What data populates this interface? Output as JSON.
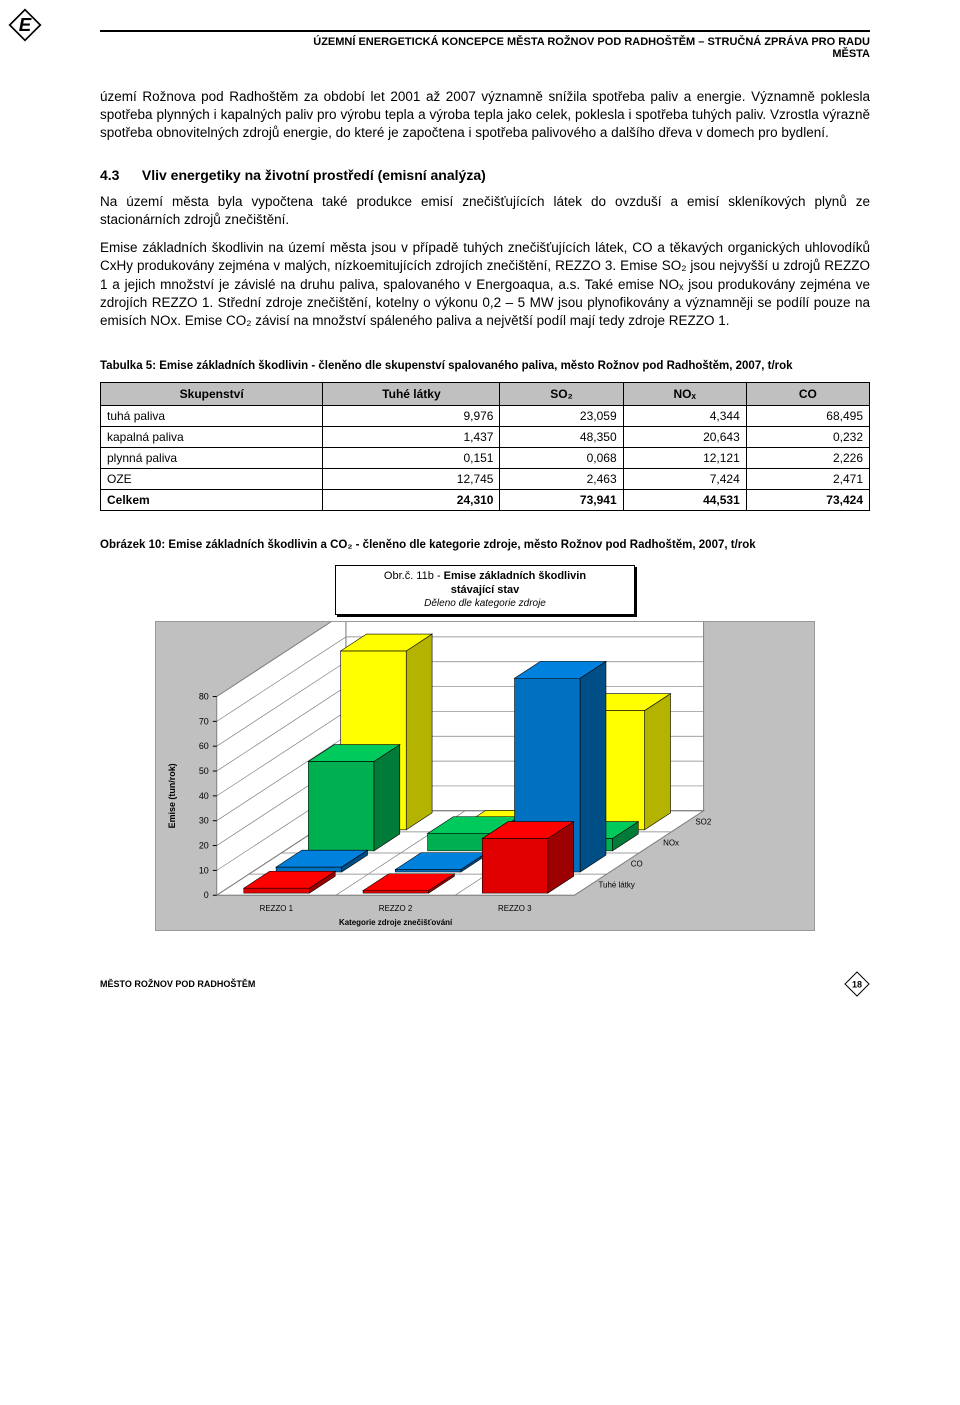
{
  "header": {
    "line1": "ÚZEMNÍ ENERGETICKÁ KONCEPCE MĚSTA ROŽNOV POD RADHOŠTĚM – STRUČNÁ ZPRÁVA PRO RADU",
    "line2": "MĚSTA"
  },
  "logo_text": "E",
  "paragraphs": {
    "p1": "území Rožnova pod Radhoštěm za období let 2001 až 2007 významně snížila spotřeba paliv a energie. Významně poklesla spotřeba plynných i kapalných paliv pro výrobu tepla a výroba tepla jako celek, poklesla i spotřeba tuhých paliv. Vzrostla výrazně spotřeba obnovitelných zdrojů energie, do které je započtena i spotřeba palivového a dalšího dřeva v domech pro bydlení.",
    "h_num": "4.3",
    "h_text": "Vliv energetiky na životní prostředí (emisní analýza)",
    "p2": "Na území města byla vypočtena také produkce emisí znečišťujících látek do ovzduší a emisí skleníkových plynů ze stacionárních zdrojů znečištění.",
    "p3": "Emise základních škodlivin na území města jsou v případě tuhých znečišťujících látek, CO a těkavých organických uhlovodíků CxHy  produkovány zejména v malých, nízkoemitujících zdrojích znečištění, REZZO 3.  Emise SO₂ jsou nejvyšší u zdrojů REZZO 1 a jejich množství je závislé na druhu paliva, spalovaného v Energoaqua, a.s. Také emise NOₓ jsou produkovány zejména ve zdrojích REZZO 1. Střední zdroje znečištění, kotelny o výkonu 0,2 – 5 MW jsou plynofikovány a významněji se podílí pouze na emisích NOx. Emise CO₂ závisí na množství spáleného paliva a největší podíl mají tedy zdroje REZZO 1."
  },
  "table": {
    "caption": "Tabulka 5:   Emise základních škodlivin - členěno dle skupenství spalovaného paliva, město Rožnov pod Radhoštěm, 2007, t/rok",
    "columns": [
      "Skupenství",
      "Tuhé látky",
      "SO₂",
      "NOₓ",
      "CO"
    ],
    "rows": [
      [
        "tuhá paliva",
        "9,976",
        "23,059",
        "4,344",
        "68,495"
      ],
      [
        "kapalná paliva",
        "1,437",
        "48,350",
        "20,643",
        "0,232"
      ],
      [
        "plynná paliva",
        "0,151",
        "0,068",
        "12,121",
        "2,226"
      ],
      [
        "OZE",
        "12,745",
        "2,463",
        "7,424",
        "2,471"
      ]
    ],
    "total": [
      "Celkem",
      "24,310",
      "73,941",
      "44,531",
      "73,424"
    ]
  },
  "figure": {
    "caption": "Obrázek 10:  Emise základních škodlivin a CO₂ - členěno dle kategorie zdroje, město Rožnov pod Radhoštěm, 2007, t/rok",
    "title_box": {
      "l1": "Obr.č. 11b - ",
      "l1b": "Emise základních škodlivin",
      "l2": "stávající stav",
      "l3": "Děleno dle kategorie zdroje"
    }
  },
  "chart": {
    "type": "3d-bar",
    "y_axis": {
      "label": "Emise (tun/rok)",
      "min": 0,
      "max": 80,
      "tick": 10,
      "fontsize": 9
    },
    "x_axis": {
      "label": "Kategorie zdroje znečišťování",
      "categories": [
        "REZZO 1",
        "REZZO 2",
        "REZZO 3"
      ],
      "fontsize": 8
    },
    "z_axis": {
      "series": [
        "Tuhé látky",
        "CO",
        "NOx",
        "SO2"
      ],
      "fontsize": 8
    },
    "series_colors": {
      "Tuhé látky": "#e00000",
      "CO": "#0070c0",
      "NOx": "#00b050",
      "SO2": "#ffff00"
    },
    "data": {
      "REZZO 1": {
        "Tuhé látky": 2,
        "CO": 2,
        "NOx": 36,
        "SO2": 72
      },
      "REZZO 2": {
        "Tuhé látky": 1,
        "CO": 1,
        "NOx": 7,
        "SO2": 1
      },
      "REZZO 3": {
        "Tuhé látky": 22,
        "CO": 78,
        "NOx": 5,
        "SO2": 48
      }
    },
    "wall_color": "#ffffff",
    "floor_color": "#ffffff",
    "background_color": "#c0c0c0",
    "grid_color": "#808080"
  },
  "footer": {
    "text": "MĚSTO ROŽNOV POD RADHOŠTĚM",
    "page": "18"
  }
}
